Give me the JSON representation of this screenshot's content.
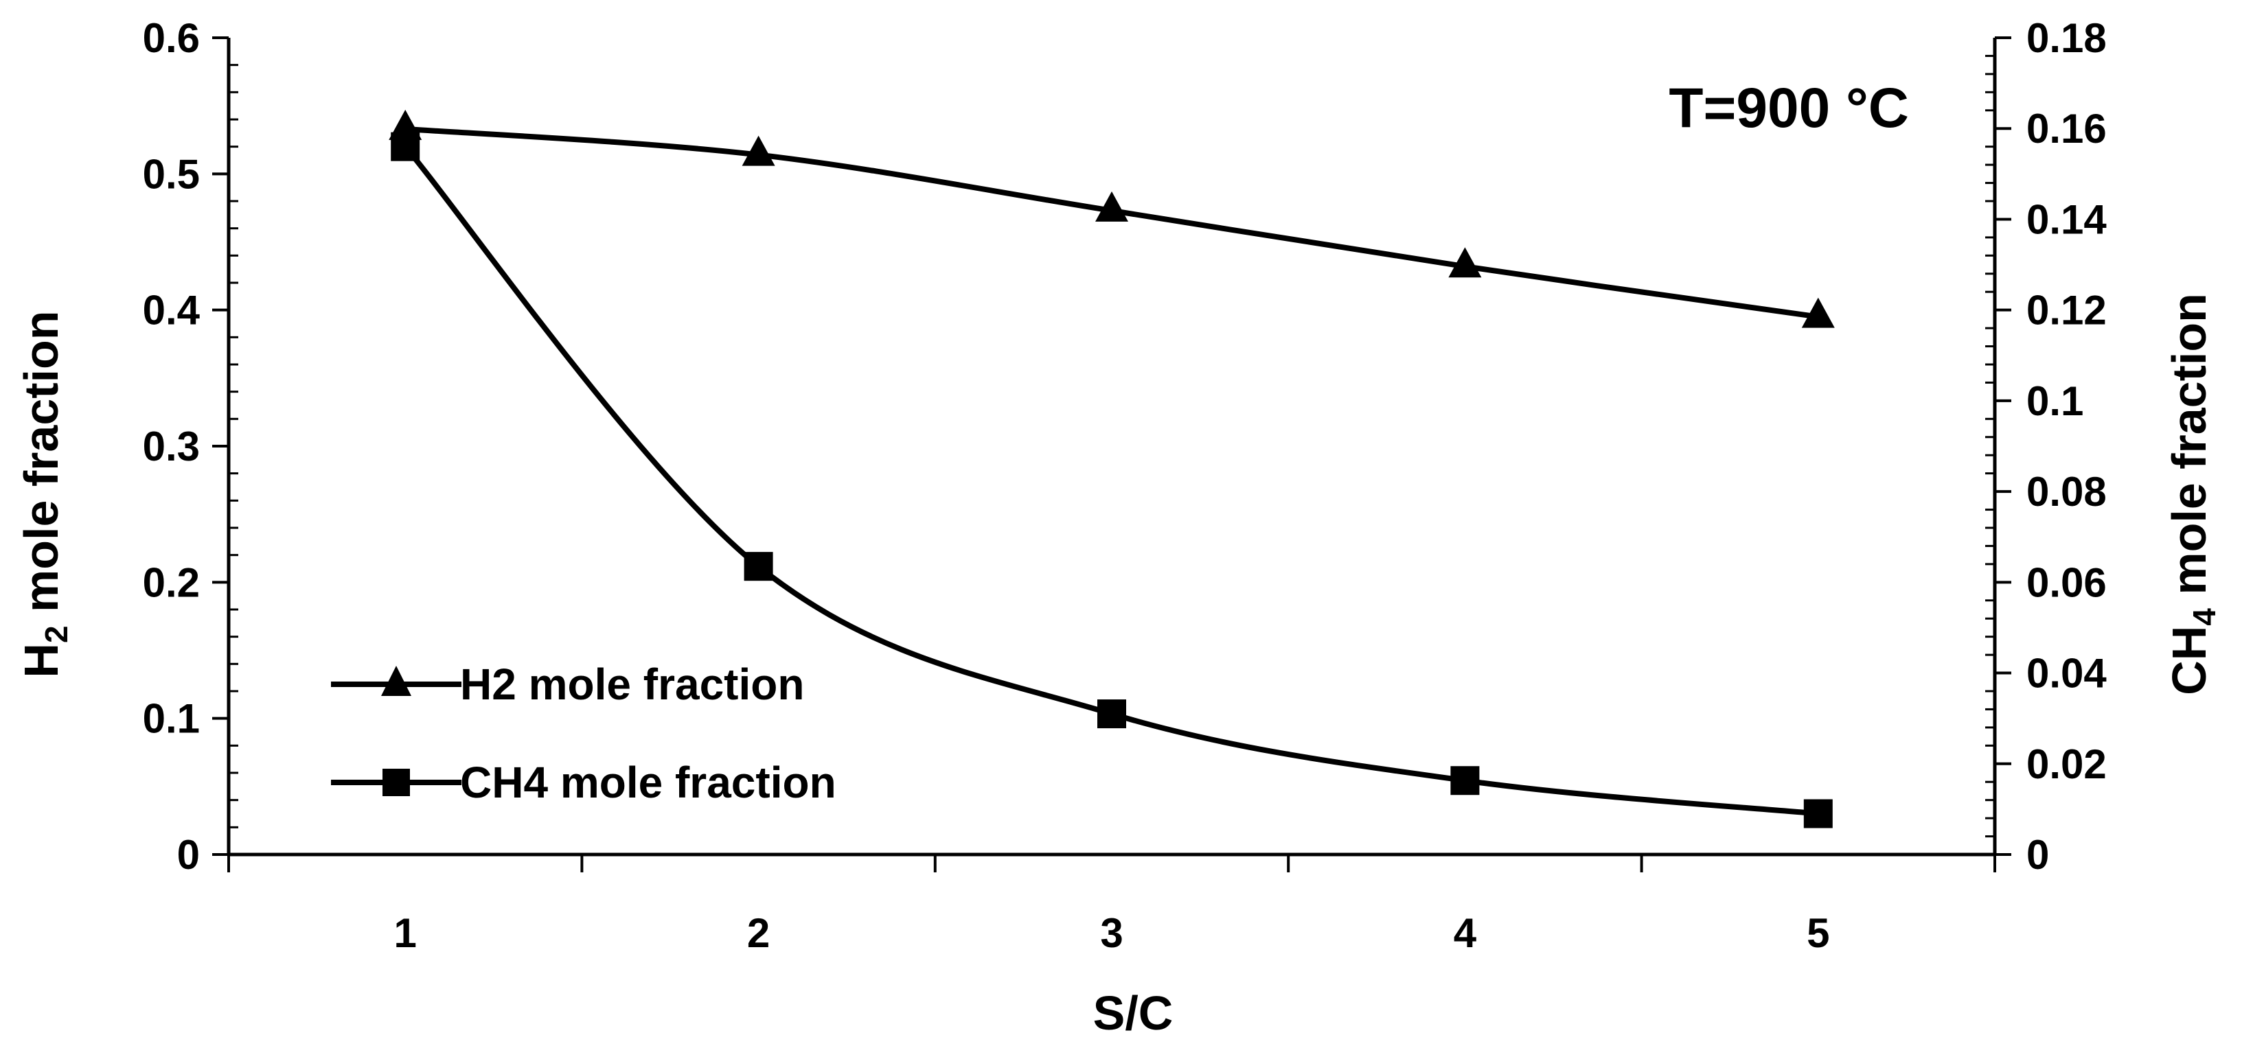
{
  "chart_data": {
    "type": "line",
    "annotation": "T=900 °C",
    "x": [
      1,
      2,
      3,
      4,
      5
    ],
    "xlabel": "S/C",
    "xlim": [
      0.5,
      5.5
    ],
    "xticks": [
      1,
      2,
      3,
      4,
      5
    ],
    "ylabel_left": {
      "main": "H",
      "sub": "2",
      "rest": " mole fraction"
    },
    "ylabel_right": {
      "main": "CH",
      "sub": "4",
      "rest": " mole fraction"
    },
    "ylim_left": [
      0,
      0.6
    ],
    "ylim_right": [
      0,
      0.18
    ],
    "yticks_left": [
      "0",
      "0.1",
      "0.2",
      "0.3",
      "0.4",
      "0.5",
      "0.6"
    ],
    "yticks_right": [
      "0",
      "0.02",
      "0.04",
      "0.06",
      "0.08",
      "0.1",
      "0.12",
      "0.14",
      "0.16",
      "0.18"
    ],
    "grid": false,
    "legend_position": "lower-left",
    "series": [
      {
        "name": "H2 mole fraction",
        "axis": "left",
        "marker": "triangle",
        "values": [
          0.533,
          0.514,
          0.473,
          0.432,
          0.395
        ]
      },
      {
        "name": "CH4 mole fraction",
        "axis": "right",
        "marker": "square",
        "values": [
          0.156,
          0.0635,
          0.031,
          0.0163,
          0.009
        ]
      }
    ],
    "colors": {
      "line": "#000000",
      "background": "#ffffff"
    }
  }
}
